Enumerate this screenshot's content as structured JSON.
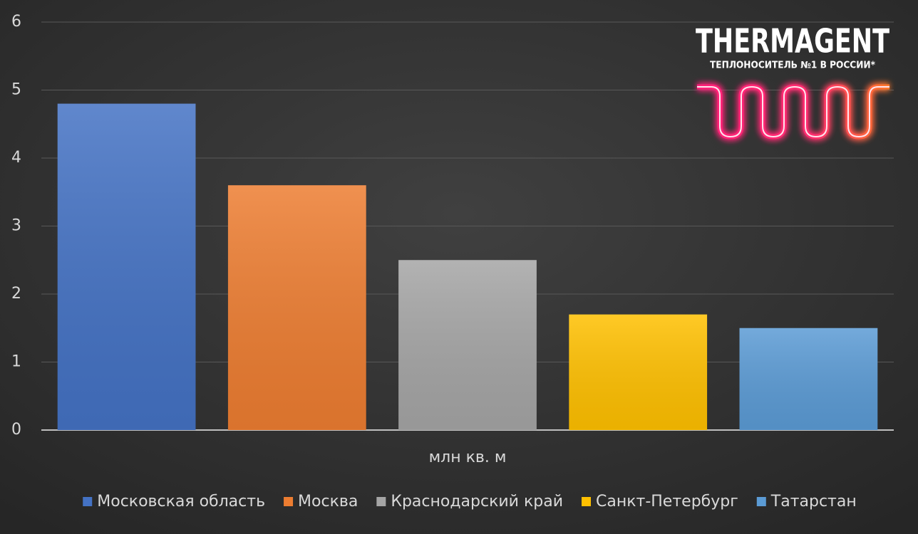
{
  "chart_data": {
    "type": "bar",
    "x_label": "млн кв. м",
    "series": [
      {
        "name": "Московская область",
        "color": "#4472c4",
        "values": [
          4.8
        ]
      },
      {
        "name": "Москва",
        "color": "#ed7d31",
        "values": [
          3.6
        ]
      },
      {
        "name": "Краснодарский край",
        "color": "#a5a5a5",
        "values": [
          2.5
        ]
      },
      {
        "name": "Санкт-Петербург",
        "color": "#ffc000",
        "values": [
          1.7
        ]
      },
      {
        "name": "Татарстан",
        "color": "#5b9bd5",
        "values": [
          1.5
        ]
      }
    ],
    "ylim": [
      0,
      6
    ],
    "yticks": [
      0,
      1,
      2,
      3,
      4,
      5,
      6
    ],
    "grid": true,
    "legend": "bottom"
  },
  "logo": {
    "name": "THERMAGENT",
    "tagline": "ТЕПЛОНОСИТЕЛЬ №1 В РОССИИ*"
  }
}
